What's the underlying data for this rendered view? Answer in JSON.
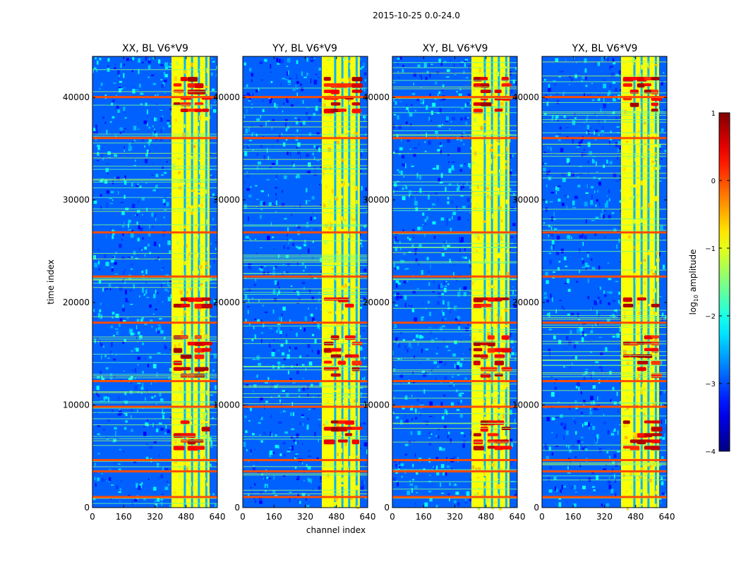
{
  "chart_data": {
    "type": "heatmap",
    "suptitle": "2015-10-25 0.0-24.0",
    "xlabel": "channel index",
    "ylabel": "time index",
    "xlim": [
      0,
      640
    ],
    "ylim": [
      0,
      44000
    ],
    "xticks": [
      0,
      160,
      320,
      480,
      640
    ],
    "yticks": [
      0,
      10000,
      20000,
      30000,
      40000
    ],
    "colorscale": "jet",
    "colorbar": {
      "label": "log10 amplitude",
      "label_main": "log",
      "label_sub": "10",
      "label_rest": " amplitude",
      "range": [
        -4,
        1
      ],
      "ticks": [
        -4,
        -3,
        -2,
        -1,
        0,
        1
      ],
      "tick_labels": [
        "−4",
        "−3",
        "−2",
        "−1",
        "0",
        "1"
      ]
    },
    "panels": [
      {
        "title": "XX, BL V6*V9",
        "pol": "XX"
      },
      {
        "title": "YY, BL V6*V9",
        "pol": "YY"
      },
      {
        "title": "XY, BL V6*V9",
        "pol": "XY"
      },
      {
        "title": "YX, BL V6*V9",
        "pol": "YX"
      }
    ],
    "bright_channel_band": [
      405,
      600
    ],
    "notable_features": {
      "flagged_time_rows": [
        1000,
        3500,
        4600,
        9800,
        12300,
        18000,
        22500,
        26800,
        36000,
        40000
      ],
      "high_amplitude_time_ranges": [
        [
          5500,
          8500
        ],
        [
          12800,
          16800
        ],
        [
          19500,
          20500
        ],
        [
          38500,
          42000
        ]
      ]
    }
  }
}
